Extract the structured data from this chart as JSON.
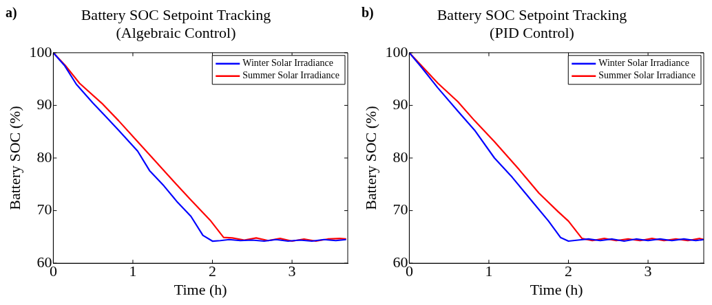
{
  "chart_data": [
    {
      "type": "line",
      "title": "Battery SOC Setpoint Tracking",
      "subtitle": "(Algebraic Control)",
      "xlabel": "Time (h)",
      "ylabel": "Battery SOC (%)",
      "annotations": [
        "a)"
      ],
      "legend": "top right",
      "xlim": [
        0,
        3.7
      ],
      "xticks": [
        0,
        1,
        2,
        3
      ],
      "ylim": [
        60,
        100
      ],
      "yticks": [
        60,
        70,
        80,
        90,
        100
      ],
      "series": [
        {
          "name": "Winter Solar Irradiance",
          "color": "#0000ff",
          "x": [
            0,
            0.14,
            0.29,
            0.5,
            0.64,
            0.82,
            1.06,
            1.21,
            1.39,
            1.56,
            1.73,
            1.88,
            2.0,
            2.1,
            2.21,
            2.35,
            2.5,
            2.65,
            2.8,
            2.95,
            3.1,
            3.25,
            3.4,
            3.55,
            3.68
          ],
          "values": [
            100,
            97.6,
            94,
            90.4,
            88.2,
            85.3,
            81.3,
            77.6,
            74.7,
            71.6,
            68.9,
            65.3,
            64.2,
            64.3,
            64.5,
            64.3,
            64.4,
            64.2,
            64.5,
            64.2,
            64.4,
            64.2,
            64.5,
            64.3,
            64.5
          ]
        },
        {
          "name": "Summer Solar Irradiance",
          "color": "#ff0000",
          "x": [
            0,
            0.15,
            0.33,
            0.61,
            0.82,
            1.06,
            1.27,
            1.54,
            1.73,
            1.97,
            2.14,
            2.25,
            2.4,
            2.55,
            2.7,
            2.85,
            3.0,
            3.15,
            3.3,
            3.45,
            3.6,
            3.68
          ],
          "values": [
            100,
            97.6,
            94.2,
            90.4,
            87.1,
            83.1,
            79.6,
            75.1,
            72,
            68.2,
            64.9,
            64.8,
            64.4,
            64.8,
            64.3,
            64.7,
            64.2,
            64.6,
            64.2,
            64.6,
            64.7,
            64.6
          ]
        }
      ]
    },
    {
      "type": "line",
      "title": "Battery SOC Setpoint Tracking",
      "subtitle": "(PID Control)",
      "xlabel": "Time (h)",
      "ylabel": "Battery SOC (%)",
      "annotations": [
        "b)"
      ],
      "legend": "top right",
      "xlim": [
        0,
        3.7
      ],
      "xticks": [
        0,
        1,
        2,
        3
      ],
      "ylim": [
        60,
        100
      ],
      "yticks": [
        60,
        70,
        80,
        90,
        100
      ],
      "series": [
        {
          "name": "Winter Solar Irradiance",
          "color": "#0000ff",
          "x": [
            0,
            0.15,
            0.36,
            0.61,
            0.82,
            1.07,
            1.29,
            1.53,
            1.75,
            1.9,
            2.0,
            2.12,
            2.25,
            2.4,
            2.55,
            2.7,
            2.85,
            3.0,
            3.15,
            3.3,
            3.45,
            3.6,
            3.7
          ],
          "values": [
            100,
            97.3,
            93.3,
            88.9,
            85.3,
            80,
            76.4,
            72,
            68,
            64.9,
            64.2,
            64.4,
            64.6,
            64.3,
            64.6,
            64.2,
            64.6,
            64.3,
            64.6,
            64.3,
            64.6,
            64.3,
            64.5
          ]
        },
        {
          "name": "Summer Solar Irradiance",
          "color": "#ff0000",
          "x": [
            0,
            0.15,
            0.36,
            0.61,
            0.82,
            1.07,
            1.38,
            1.63,
            1.87,
            2.0,
            2.17,
            2.3,
            2.45,
            2.6,
            2.75,
            2.9,
            3.05,
            3.2,
            3.35,
            3.5,
            3.65,
            3.7
          ],
          "values": [
            100,
            97.6,
            94.2,
            90.7,
            87.1,
            83.1,
            77.8,
            73.3,
            69.8,
            68,
            64.7,
            64.3,
            64.7,
            64.3,
            64.6,
            64.3,
            64.7,
            64.3,
            64.6,
            64.3,
            64.7,
            64.5
          ]
        }
      ]
    }
  ]
}
